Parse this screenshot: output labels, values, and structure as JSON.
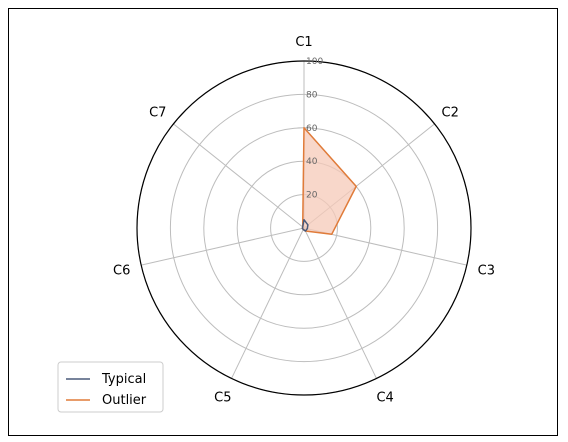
{
  "chart_data": {
    "type": "radar",
    "categories": [
      "C1",
      "C2",
      "C3",
      "C4",
      "C5",
      "C6",
      "C7"
    ],
    "rlim": [
      0,
      100
    ],
    "rticks": [
      20,
      40,
      60,
      80,
      100
    ],
    "grid": true,
    "legend_position": "bottom-left",
    "series": [
      {
        "name": "Typical",
        "color": "#4a5a7a",
        "values": [
          5,
          3,
          2,
          2,
          1,
          1,
          1
        ]
      },
      {
        "name": "Outlier",
        "color": "#e07b39",
        "fill": "#f6c9b8",
        "values": [
          60,
          40,
          17,
          2,
          1,
          1,
          1
        ]
      }
    ]
  }
}
